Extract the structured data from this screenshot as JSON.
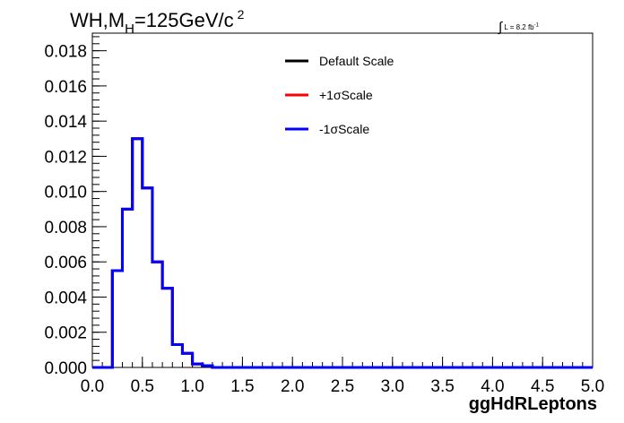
{
  "chart_data": {
    "type": "histogram",
    "title": {
      "main": "WH,M",
      "subscript": "H",
      "rest": "=125GeV/c",
      "superscript": "2"
    },
    "luminosity": {
      "integral": "∫",
      "text": "L = 8.2 fb",
      "superscript": "-1"
    },
    "xlabel": "ggHdRLeptons",
    "ylabel": "",
    "xlim": [
      0.0,
      5.0
    ],
    "ylim": [
      0.0,
      0.019
    ],
    "xticks": [
      "0.0",
      "0.5",
      "1.0",
      "1.5",
      "2.0",
      "2.5",
      "3.0",
      "3.5",
      "4.0",
      "4.5",
      "5.0"
    ],
    "yticks": [
      "0.000",
      "0.002",
      "0.004",
      "0.006",
      "0.008",
      "0.010",
      "0.012",
      "0.014",
      "0.016",
      "0.018"
    ],
    "bin_edges": [
      0.0,
      0.1,
      0.2,
      0.3,
      0.4,
      0.5,
      0.6,
      0.7,
      0.8,
      0.9,
      1.0,
      1.1,
      1.2,
      1.3,
      1.4,
      1.5,
      1.6,
      1.7,
      1.8,
      1.9,
      2.0,
      2.1,
      2.2,
      2.3,
      2.4,
      2.5,
      2.6,
      2.7,
      2.8,
      2.9,
      3.0,
      3.1,
      3.2,
      3.3,
      3.4,
      3.5,
      3.6,
      3.7,
      3.8,
      3.9,
      4.0,
      4.1,
      4.2,
      4.3,
      4.4,
      4.5,
      4.6,
      4.7,
      4.8,
      4.9,
      5.0
    ],
    "legend_position": "top-right",
    "grid": false,
    "series": [
      {
        "name": "Default Scale",
        "color": "#000000",
        "values": [
          0,
          0,
          0.0055,
          0.009,
          0.013,
          0.0102,
          0.006,
          0.0045,
          0.0013,
          0.0008,
          0.0002,
          0.0001,
          0,
          0,
          0,
          0,
          0,
          0,
          0,
          0,
          0,
          0,
          0,
          0,
          0,
          0,
          0,
          0,
          0,
          0,
          0,
          0,
          0,
          0,
          0,
          0,
          0,
          0,
          0,
          0,
          0,
          0,
          0,
          0,
          0,
          0,
          0,
          0,
          0,
          0
        ]
      },
      {
        "name": "+1σScale",
        "color": "#ff0000",
        "values": [
          0,
          0,
          0.0055,
          0.009,
          0.013,
          0.0102,
          0.006,
          0.0045,
          0.0013,
          0.0008,
          0.0002,
          0.0001,
          0,
          0,
          0,
          0,
          0,
          0,
          0,
          0,
          0,
          0,
          0,
          0,
          0,
          0,
          0,
          0,
          0,
          0,
          0,
          0,
          0,
          0,
          0,
          0,
          0,
          0,
          0,
          0,
          0,
          0,
          0,
          0,
          0,
          0,
          0,
          0,
          0,
          0
        ]
      },
      {
        "name": "-1σScale",
        "color": "#0000ff",
        "values": [
          0,
          0,
          0.0055,
          0.009,
          0.013,
          0.0102,
          0.006,
          0.0045,
          0.0013,
          0.0008,
          0.0002,
          0.0001,
          0,
          0,
          0,
          0,
          0,
          0,
          0,
          0,
          0,
          0,
          0,
          0,
          0,
          0,
          0,
          0,
          0,
          0,
          0,
          0,
          0,
          0,
          0,
          0,
          0,
          0,
          0,
          0,
          0,
          0,
          0,
          0,
          0,
          0,
          0,
          0,
          0,
          0
        ]
      }
    ]
  }
}
